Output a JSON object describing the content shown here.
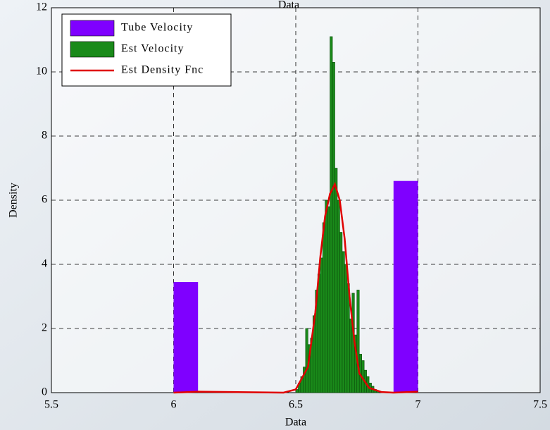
{
  "chart_data": {
    "type": "histogram",
    "title": "Data",
    "x_label": "Data",
    "y_label": "Density",
    "xlim": [
      5.5,
      7.5
    ],
    "xticks": [
      5.5,
      6,
      6.5,
      7,
      7.5
    ],
    "ylim": [
      0,
      12
    ],
    "yticks": [
      0,
      2,
      4,
      6,
      8,
      10,
      12
    ],
    "grid": true,
    "legend": "upper-left",
    "series": [
      {
        "name": "Tube Velocity",
        "type": "histogram",
        "color": "#7f00ff",
        "bins": [
          6.0,
          6.1,
          6.2,
          6.3,
          6.4,
          6.5,
          6.6,
          6.7,
          6.8,
          6.9,
          7.0
        ],
        "values": [
          3.45,
          0,
          0,
          0,
          0,
          0,
          0,
          0,
          0,
          6.6
        ]
      },
      {
        "name": "Est Velocity",
        "type": "histogram",
        "color": "#1a8a1a",
        "bins": [
          6.5,
          6.51,
          6.52,
          6.53,
          6.54,
          6.55,
          6.56,
          6.57,
          6.58,
          6.59,
          6.6,
          6.61,
          6.62,
          6.63,
          6.64,
          6.65,
          6.66,
          6.67,
          6.68,
          6.69,
          6.7,
          6.71,
          6.72,
          6.73,
          6.74,
          6.75,
          6.76,
          6.77,
          6.78,
          6.79,
          6.8,
          6.81,
          6.82,
          6.83,
          6.84
        ],
        "values": [
          0.1,
          0.3,
          0.5,
          0.8,
          2.0,
          1.5,
          1.7,
          2.4,
          3.2,
          3.7,
          4.2,
          5.3,
          6.0,
          5.8,
          11.1,
          10.3,
          7.0,
          6.0,
          5.0,
          4.4,
          4.0,
          3.4,
          2.3,
          3.1,
          1.8,
          3.2,
          1.2,
          1.0,
          0.7,
          0.5,
          0.3,
          0.2,
          0.1,
          0.05
        ]
      },
      {
        "name": "Est Density Fnc",
        "type": "line",
        "color": "#e00000",
        "x": [
          6.0,
          6.1,
          6.45,
          6.5,
          6.55,
          6.58,
          6.6,
          6.62,
          6.64,
          6.66,
          6.68,
          6.7,
          6.72,
          6.74,
          6.76,
          6.8,
          6.85,
          6.9,
          7.0
        ],
        "values": [
          0,
          0.03,
          0,
          0.1,
          0.8,
          2.5,
          4.2,
          5.5,
          6.2,
          6.5,
          6.0,
          4.8,
          3.0,
          1.6,
          0.6,
          0.15,
          0.02,
          0,
          0.03
        ]
      }
    ]
  }
}
